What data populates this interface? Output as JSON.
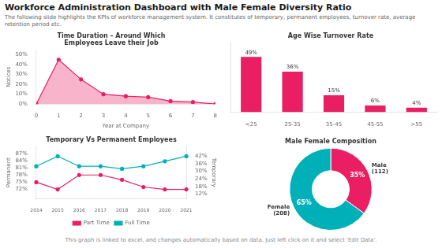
{
  "title": "Workforce Administration Dashboard with Male Female Diversity Ratio",
  "subtitle": "The following slide highlights the KPIs of workforce management system. It constitutes of temporary, permanent employees, turnover rate, average retention period etc.",
  "annotations": [
    "This graph is linked to excel, and changes automatically based on data. Just left click on it and select 'Edit Data'."
  ],
  "chart_data": [
    {
      "type": "area",
      "title": "Time Duration – Around Which\nEmployees Leave their Job",
      "x": [
        0,
        1,
        2,
        3,
        4,
        5,
        6,
        7,
        8
      ],
      "values": [
        0,
        45,
        25,
        10,
        8,
        7,
        3,
        2,
        0
      ],
      "color": "#E91E63",
      "marker": "circle",
      "xlabel": "Year at Company",
      "ylabel": "Notices",
      "xlim": [
        0,
        8
      ],
      "xticks": [
        0,
        1,
        2,
        3,
        4,
        5,
        6,
        7,
        8
      ],
      "ylim": [
        0,
        55
      ],
      "yticks": [
        {
          "value": 0,
          "label": "0%"
        },
        {
          "value": 10,
          "label": "10%"
        },
        {
          "value": 20,
          "label": "20%"
        },
        {
          "value": 30,
          "label": "30%"
        },
        {
          "value": 40,
          "label": "40%"
        },
        {
          "value": 50,
          "label": "50%"
        }
      ],
      "grid": false
    },
    {
      "type": "bar",
      "title": "Age Wise Turnover Rate",
      "categories": [
        "<25",
        "25-35",
        "35-45",
        "45-55",
        ">55"
      ],
      "values": [
        49,
        36,
        15,
        6,
        4
      ],
      "value_labels": [
        "49%",
        "36%",
        "15%",
        "6%",
        "4%"
      ],
      "data_labels": true,
      "color": "#E91E63",
      "ylim": [
        0,
        62
      ],
      "tick_labels": "x",
      "grid": false
    },
    {
      "type": "line",
      "title": "Temporary Vs Permanent Employees",
      "categories": [
        "2014",
        "2015",
        "2016",
        "2017",
        "2018",
        "2019",
        "2020",
        "2021"
      ],
      "series": [
        {
          "name": "Part Time",
          "color": "#E91E63",
          "marker": "circle",
          "values": [
            75,
            72,
            78,
            78,
            76,
            73,
            72,
            72
          ]
        },
        {
          "name": "Full Time",
          "color": "#00B0B9",
          "marker": "circle",
          "axis": "y2",
          "values": [
            34,
            42,
            34,
            34,
            32,
            34,
            38,
            42
          ]
        }
      ],
      "ylabel": "Permanent",
      "y2label": "Temporary",
      "ylim": [
        68,
        90
      ],
      "yticks": [
        {
          "value": 72,
          "label": "72%"
        },
        {
          "value": 75,
          "label": "75%"
        },
        {
          "value": 78,
          "label": "78%"
        },
        {
          "value": 81,
          "label": "81%"
        },
        {
          "value": 84,
          "label": "84%"
        },
        {
          "value": 87,
          "label": "87%"
        }
      ],
      "y2lim": [
        8,
        50
      ],
      "y2ticks": [
        {
          "value": 12,
          "label": "12%"
        },
        {
          "value": 18,
          "label": "18%"
        },
        {
          "value": 24,
          "label": "24%"
        },
        {
          "value": 30,
          "label": "30%"
        },
        {
          "value": 36,
          "label": "36%"
        },
        {
          "value": 42,
          "label": "42%"
        }
      ],
      "legend": "bottom",
      "grid": false
    },
    {
      "type": "donut",
      "title": "Male Female Composition",
      "categories": [
        "Male\n(112)",
        "Female\n(208)"
      ],
      "values": [
        35,
        65
      ],
      "value_labels": [
        "35%",
        "65%"
      ],
      "data_labels": true,
      "colors": [
        "#E91E63",
        "#00B0B9"
      ]
    }
  ]
}
